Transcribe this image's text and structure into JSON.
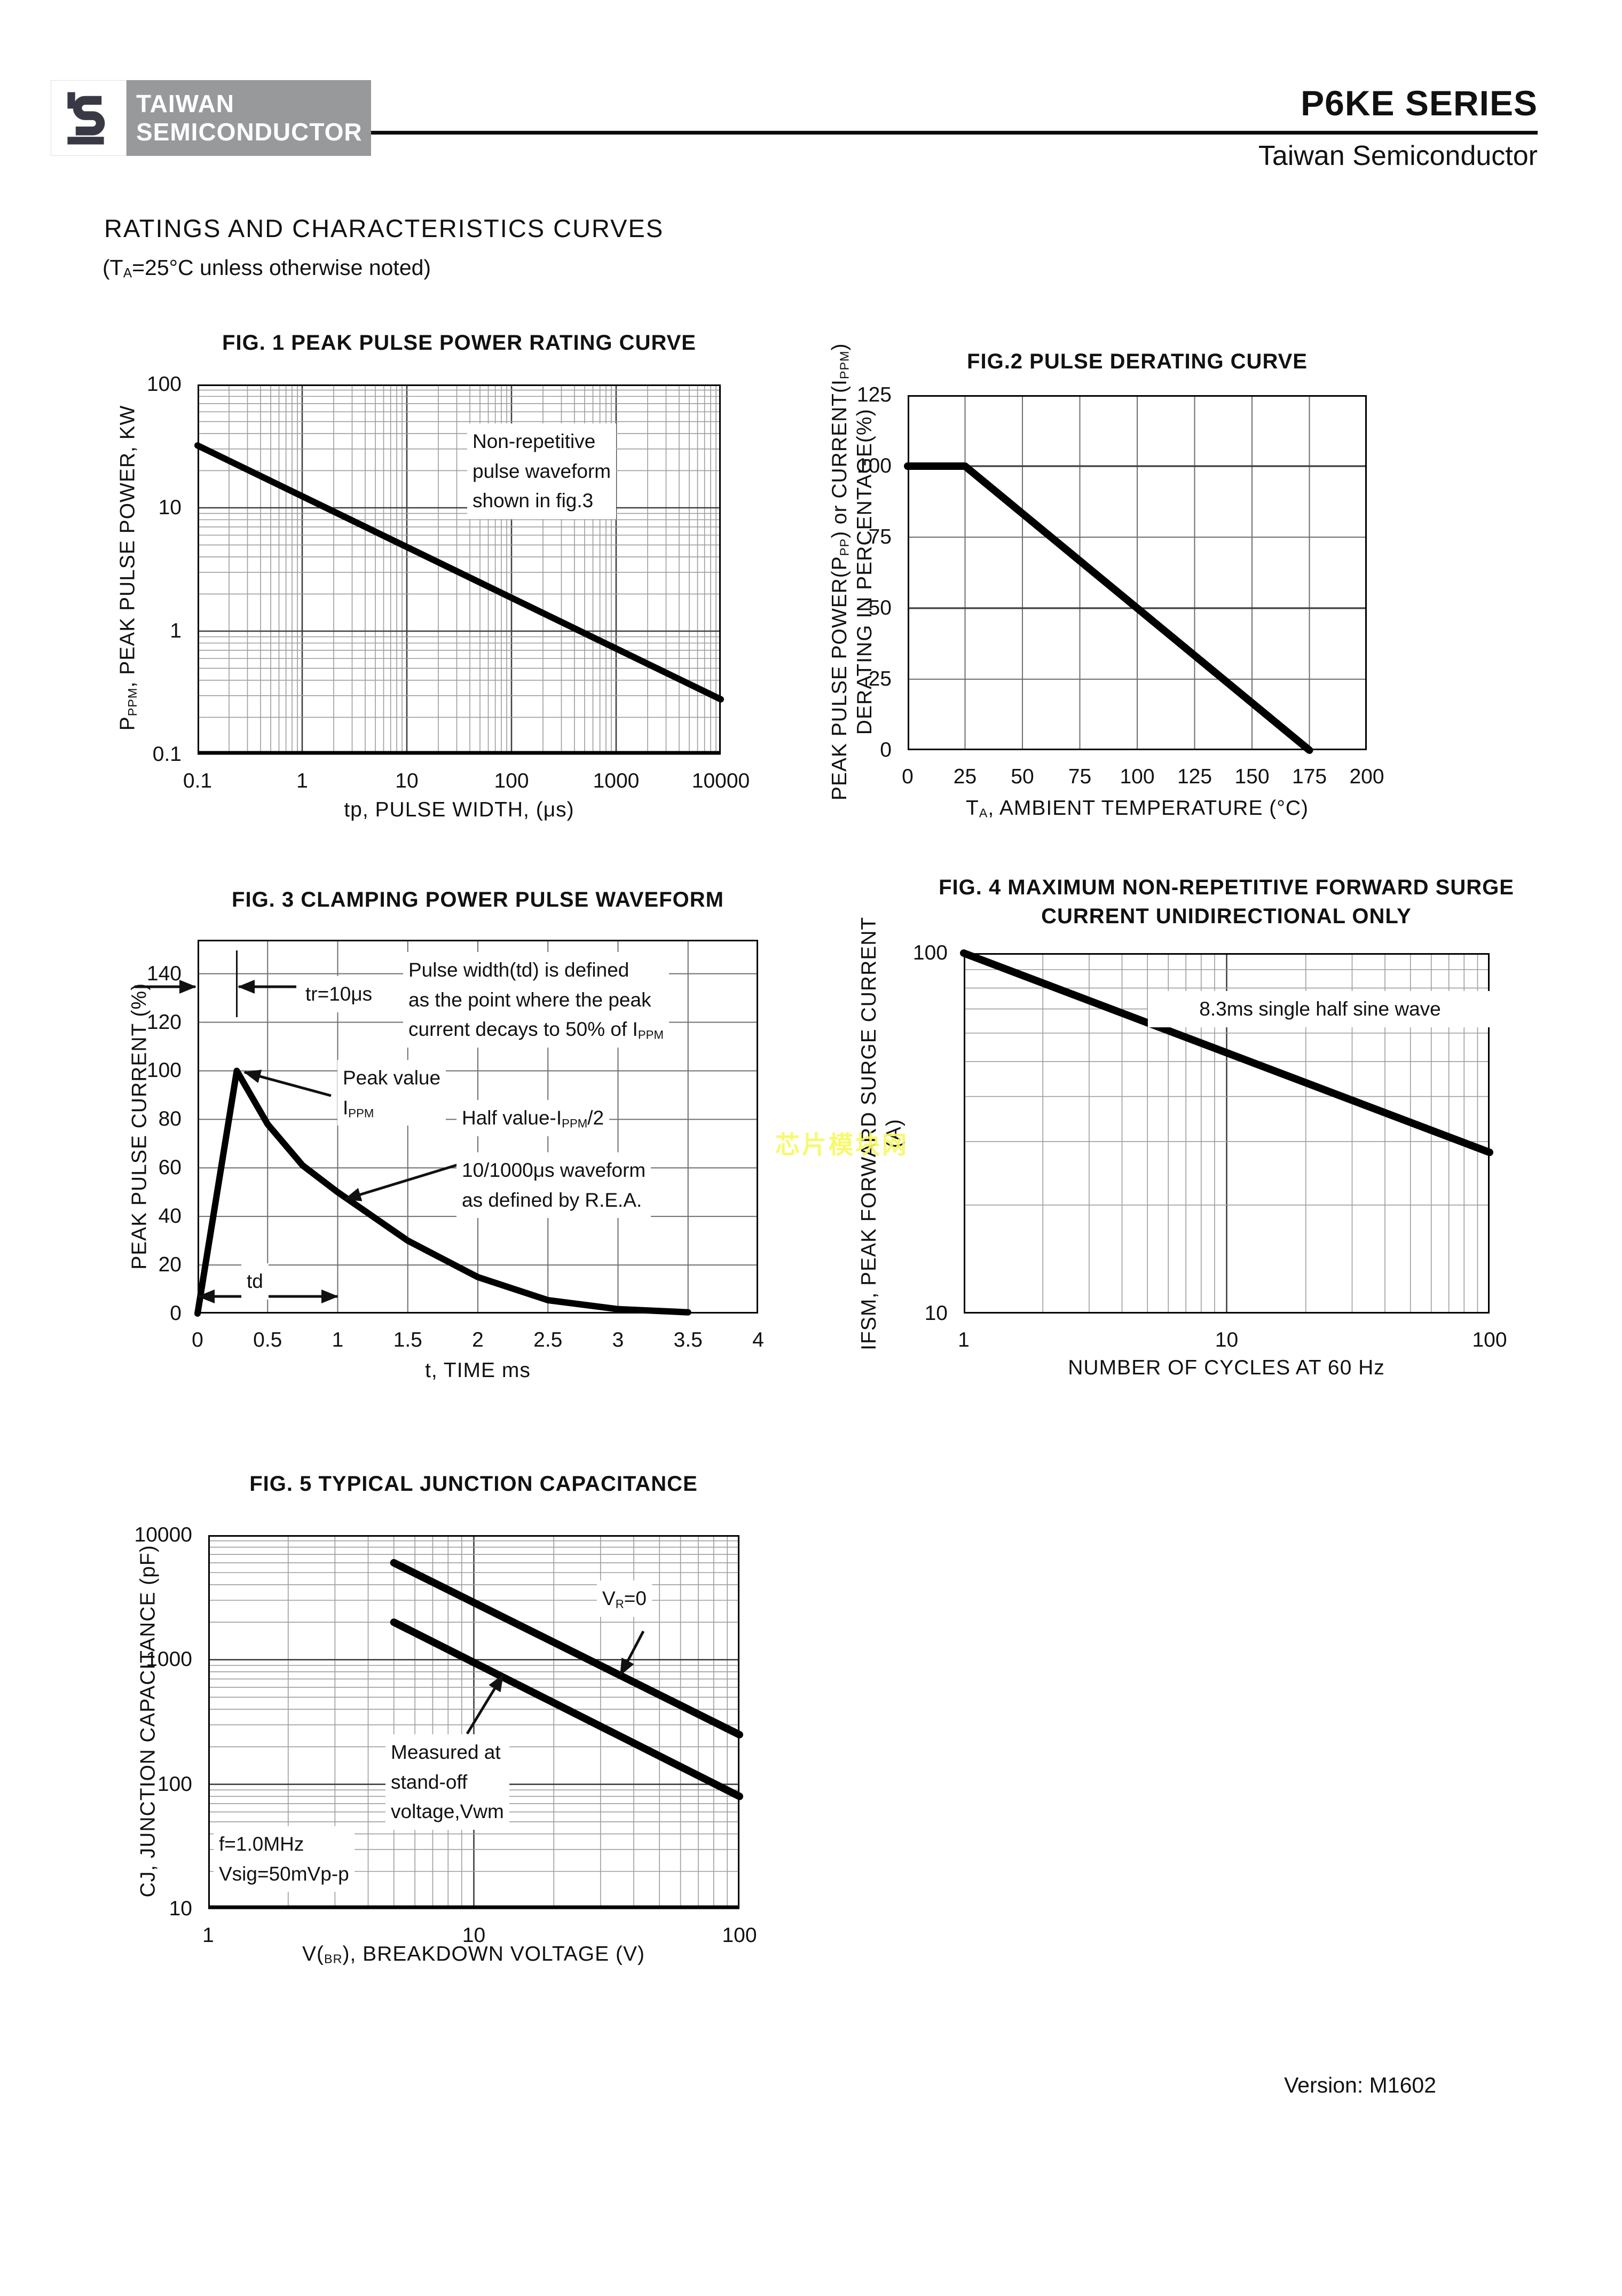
{
  "header": {
    "logo_line1": "TAIWAN",
    "logo_line2": "SEMICONDUCTOR",
    "series_title": "P6KE SERIES",
    "company": "Taiwan Semiconductor"
  },
  "section": {
    "title": "RATINGS AND CHARACTERISTICS CURVES",
    "condition": [
      [
        {
          "t": "(T"
        },
        {
          "t": "A",
          "s": "sub"
        },
        {
          "t": "=25°C unless otherwise noted)"
        }
      ]
    ]
  },
  "footer": {
    "version": "Version: M1602"
  },
  "watermark": {
    "text": "芯片模块网",
    "color": "#f8f860"
  },
  "colors": {
    "logo_grey": "#97999b",
    "logo_glyph": "#393945",
    "curve": "#000000",
    "grid_minor": "#9c9c9c",
    "grid_major": "#3f3f3f",
    "grid_linear": "#6e6e6e"
  },
  "chart_data": [
    {
      "id": "fig1",
      "type": "line",
      "title": [
        [
          {
            "t": "FIG. 1 PEAK PULSE POWER RATING CURVE"
          }
        ]
      ],
      "xlabel": [
        [
          {
            "t": "tp, PULSE WIDTH, (μs)"
          }
        ]
      ],
      "ylabel": [
        [
          {
            "t": "P"
          },
          {
            "t": "PPM",
            "s": "sub"
          },
          {
            "t": ", PEAK PULSE POWER, KW"
          }
        ]
      ],
      "x": {
        "scale": "log",
        "min": 0.1,
        "max": 10000
      },
      "y": {
        "scale": "log",
        "min": 0.1,
        "max": 100
      },
      "xticks": [
        {
          "v": 0.1,
          "l": "0.1"
        },
        {
          "v": 1,
          "l": "1"
        },
        {
          "v": 10,
          "l": "10"
        },
        {
          "v": 100,
          "l": "100"
        },
        {
          "v": 1000,
          "l": "1000"
        },
        {
          "v": 10000,
          "l": "10000"
        }
      ],
      "yticks": [
        {
          "v": 100,
          "l": "100"
        },
        {
          "v": 10,
          "l": "10"
        },
        {
          "v": 1,
          "l": "1"
        },
        {
          "v": 0.1,
          "l": "0.1"
        }
      ],
      "series": [
        {
          "name": "peak pulse power",
          "points": [
            [
              0.1,
              32
            ],
            [
              10000,
              0.28
            ]
          ]
        }
      ],
      "annotations": {
        "note": [
          [
            {
              "t": "Non-repetitive"
            }
          ],
          [
            {
              "t": "pulse waveform"
            }
          ],
          [
            {
              "t": "shown in fig.3"
            }
          ]
        ]
      }
    },
    {
      "id": "fig2",
      "type": "line",
      "title": [
        [
          {
            "t": "FIG.2 PULSE DERATING CURVE"
          }
        ]
      ],
      "xlabel": [
        [
          {
            "t": "T"
          },
          {
            "t": "A",
            "s": "sub"
          },
          {
            "t": ", AMBIENT TEMPERATURE (°C)"
          }
        ]
      ],
      "ylabel": [
        [
          {
            "t": "PEAK PULSE POWER(P"
          },
          {
            "t": "PP",
            "s": "sub"
          },
          {
            "t": ") or CURRENT(I"
          },
          {
            "t": "PPM",
            "s": "sub"
          },
          {
            "t": ")"
          }
        ],
        [
          {
            "t": "DERATING IN PERCENTAGE(%)"
          }
        ]
      ],
      "x": {
        "scale": "linear",
        "min": 0,
        "max": 200
      },
      "y": {
        "scale": "linear",
        "min": 0,
        "max": 125
      },
      "xticks": [
        {
          "v": 0,
          "l": "0"
        },
        {
          "v": 25,
          "l": "25"
        },
        {
          "v": 50,
          "l": "50"
        },
        {
          "v": 75,
          "l": "75"
        },
        {
          "v": 100,
          "l": "100"
        },
        {
          "v": 125,
          "l": "125"
        },
        {
          "v": 150,
          "l": "150"
        },
        {
          "v": 175,
          "l": "175"
        },
        {
          "v": 200,
          "l": "200"
        }
      ],
      "yticks": [
        {
          "v": 0,
          "l": "0"
        },
        {
          "v": 25,
          "l": "25"
        },
        {
          "v": 50,
          "l": "50"
        },
        {
          "v": 75,
          "l": "75"
        },
        {
          "v": 100,
          "l": "100"
        },
        {
          "v": 125,
          "l": "125"
        }
      ],
      "series": [
        {
          "name": "derating",
          "points": [
            [
              0,
              100
            ],
            [
              25,
              100
            ],
            [
              175,
              0
            ]
          ]
        }
      ],
      "annotations": {}
    },
    {
      "id": "fig3",
      "type": "line",
      "title": [
        [
          {
            "t": "FIG. 3 CLAMPING POWER PULSE WAVEFORM"
          }
        ]
      ],
      "xlabel": [
        [
          {
            "t": "t, TIME ms"
          }
        ]
      ],
      "ylabel": [
        [
          {
            "t": "PEAK PULSE CURRENT (%)"
          }
        ]
      ],
      "x": {
        "scale": "linear",
        "min": 0,
        "max": 4
      },
      "y": {
        "scale": "linear",
        "min": 0,
        "max": 154
      },
      "xticks": [
        {
          "v": 0,
          "l": "0"
        },
        {
          "v": 0.5,
          "l": "0.5"
        },
        {
          "v": 1,
          "l": "1"
        },
        {
          "v": 1.5,
          "l": "1.5"
        },
        {
          "v": 2,
          "l": "2"
        },
        {
          "v": 2.5,
          "l": "2.5"
        },
        {
          "v": 3,
          "l": "3"
        },
        {
          "v": 3.5,
          "l": "3.5"
        },
        {
          "v": 4,
          "l": "4"
        }
      ],
      "yticks": [
        {
          "v": 0,
          "l": "0"
        },
        {
          "v": 20,
          "l": "20"
        },
        {
          "v": 40,
          "l": "40"
        },
        {
          "v": 60,
          "l": "60"
        },
        {
          "v": 80,
          "l": "80"
        },
        {
          "v": 100,
          "l": "100"
        },
        {
          "v": 120,
          "l": "120"
        },
        {
          "v": 140,
          "l": "140"
        }
      ],
      "series": [
        {
          "name": "10/1000μs pulse waveform",
          "points": [
            [
              0,
              0
            ],
            [
              0.28,
              100
            ],
            [
              0.5,
              78
            ],
            [
              0.75,
              61
            ],
            [
              1,
              50
            ],
            [
              1.5,
              30
            ],
            [
              2,
              15
            ],
            [
              2.5,
              5.5
            ],
            [
              3,
              1.8
            ],
            [
              3.5,
              0.5
            ]
          ]
        }
      ],
      "annotations": {
        "pulse_note": [
          [
            {
              "t": "Pulse width(td) is defined"
            }
          ],
          [
            {
              "t": "as the point where the peak"
            }
          ],
          [
            {
              "t": "current decays to 50% of I"
            },
            {
              "t": "PPM",
              "s": "sub"
            }
          ]
        ],
        "tr_label": [
          [
            {
              "t": "tr=10μs"
            }
          ]
        ],
        "peak_label": [
          [
            {
              "t": "Peak value"
            }
          ],
          [
            {
              "t": "I"
            },
            {
              "t": "PPM",
              "s": "sub"
            }
          ]
        ],
        "half_label": [
          [
            {
              "t": "Half value-I"
            },
            {
              "t": "PPM",
              "s": "sub"
            },
            {
              "t": "/2"
            }
          ]
        ],
        "rea_note": [
          [
            {
              "t": "10/1000μs waveform"
            }
          ],
          [
            {
              "t": "as defined by R.E.A."
            }
          ]
        ],
        "td_label": [
          [
            {
              "t": "td"
            }
          ]
        ]
      }
    },
    {
      "id": "fig4",
      "type": "line",
      "title": [
        [
          {
            "t": "FIG. 4 MAXIMUM  NON-REPETITIVE FORWARD SURGE"
          }
        ],
        [
          {
            "t": "CURRENT UNIDIRECTIONAL ONLY"
          }
        ]
      ],
      "xlabel": [
        [
          {
            "t": "NUMBER OF CYCLES AT 60 Hz"
          }
        ]
      ],
      "ylabel": [
        [
          {
            "t": "IFSM, PEAK FORWARD SURGE CURRENT"
          }
        ],
        [
          {
            "t": "(A)"
          }
        ]
      ],
      "x": {
        "scale": "log",
        "min": 1,
        "max": 100
      },
      "y": {
        "scale": "log",
        "min": 10,
        "max": 100
      },
      "xticks": [
        {
          "v": 1,
          "l": "1"
        },
        {
          "v": 10,
          "l": "10"
        },
        {
          "v": 100,
          "l": "100"
        }
      ],
      "yticks": [
        {
          "v": 100,
          "l": "100"
        },
        {
          "v": 10,
          "l": "10"
        }
      ],
      "series": [
        {
          "name": "peak forward surge current",
          "points": [
            [
              1,
              100
            ],
            [
              100,
              28
            ]
          ]
        }
      ],
      "annotations": {
        "note": [
          [
            {
              "t": "8.3ms single half sine wave"
            }
          ]
        ]
      }
    },
    {
      "id": "fig5",
      "type": "line",
      "title": [
        [
          {
            "t": "FIG. 5 TYPICAL JUNCTION CAPACITANCE"
          }
        ]
      ],
      "xlabel": [
        [
          {
            "t": "V("
          },
          {
            "t": "BR",
            "s": "sub"
          },
          {
            "t": "), BREAKDOWN VOLTAGE (V)"
          }
        ]
      ],
      "ylabel": [
        [
          {
            "t": "CJ, JUNCTION CAPACITANCE (pF)"
          }
        ]
      ],
      "x": {
        "scale": "log",
        "min": 1,
        "max": 100
      },
      "y": {
        "scale": "log",
        "min": 10,
        "max": 10000
      },
      "xticks": [
        {
          "v": 1,
          "l": "1"
        },
        {
          "v": 10,
          "l": "10"
        },
        {
          "v": 100,
          "l": "100"
        }
      ],
      "yticks": [
        {
          "v": 10000,
          "l": "10000"
        },
        {
          "v": 1000,
          "l": "1000"
        },
        {
          "v": 100,
          "l": "100"
        },
        {
          "v": 10,
          "l": "10"
        }
      ],
      "series": [
        {
          "name": "VR=0",
          "points": [
            [
              5,
              6000
            ],
            [
              100,
              250
            ]
          ]
        },
        {
          "name": "measured at stand-off voltage Vwm",
          "points": [
            [
              5,
              2000
            ],
            [
              100,
              80
            ]
          ]
        }
      ],
      "annotations": {
        "vr_label": [
          [
            {
              "t": "V"
            },
            {
              "t": "R",
              "s": "sub"
            },
            {
              "t": "=0"
            }
          ]
        ],
        "measured_note": [
          [
            {
              "t": "Measured at"
            }
          ],
          [
            {
              "t": "stand-off"
            }
          ],
          [
            {
              "t": "voltage,Vwm"
            }
          ]
        ],
        "cond_note": [
          [
            {
              "t": "f=1.0MHz"
            }
          ],
          [
            {
              "t": "Vsig=50mVp-p"
            }
          ]
        ]
      }
    }
  ]
}
